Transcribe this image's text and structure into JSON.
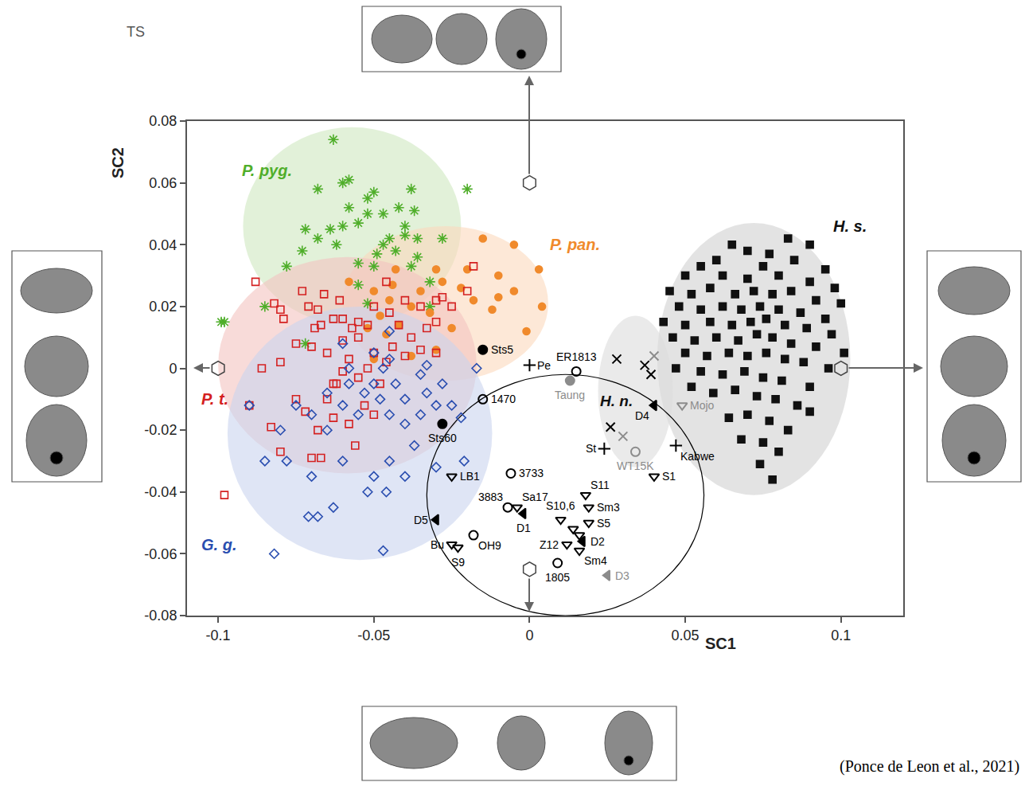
{
  "chart_data": {
    "type": "scatter",
    "x_label": "SC1",
    "y_label": "SC2",
    "xlim": [
      -0.11,
      0.12
    ],
    "ylim": [
      -0.08,
      0.08
    ],
    "xticks": [
      -0.1,
      -0.05,
      0,
      0.05,
      0.1
    ],
    "yticks": [
      -0.08,
      -0.06,
      -0.04,
      -0.02,
      0,
      0.02,
      0.04,
      0.06,
      0.08
    ],
    "grid": false,
    "source": "(Ponce de Leon et al., 2021)",
    "inset_label": "TS",
    "series": [
      {
        "name": "P. pyg.",
        "color": "#4fae2a",
        "marker": "asterisk",
        "region": {
          "x0": -0.092,
          "x1": -0.022,
          "y0": 0.014,
          "y1": 0.078,
          "color": "#cfe8bf"
        },
        "x": [
          -0.063,
          -0.058,
          -0.06,
          -0.068,
          -0.05,
          -0.038,
          -0.02,
          -0.058,
          -0.052,
          -0.042,
          -0.037,
          -0.047,
          -0.052,
          -0.06,
          -0.064,
          -0.072,
          -0.068,
          -0.062,
          -0.055,
          -0.04,
          -0.045,
          -0.04,
          -0.036,
          -0.073,
          -0.047,
          -0.049,
          -0.043,
          -0.036,
          -0.028,
          -0.038,
          -0.078,
          -0.055,
          -0.05,
          -0.032,
          -0.098,
          -0.085,
          -0.099,
          -0.072,
          -0.055,
          -0.052,
          -0.032
        ],
        "y": [
          0.074,
          0.061,
          0.06,
          0.058,
          0.057,
          0.058,
          0.058,
          0.052,
          0.055,
          0.052,
          0.051,
          0.05,
          0.05,
          0.046,
          0.045,
          0.045,
          0.042,
          0.04,
          0.047,
          0.046,
          0.042,
          0.043,
          0.042,
          0.038,
          0.04,
          0.037,
          0.038,
          0.036,
          0.042,
          0.033,
          0.033,
          0.034,
          0.033,
          0.028,
          0.015,
          0.02,
          0.015,
          0.008,
          0.027,
          0.021,
          0.02
        ]
      },
      {
        "name": "P. pan.",
        "color": "#f08a2c",
        "marker": "circle",
        "region": {
          "x0": -0.06,
          "x1": 0.006,
          "y0": -0.004,
          "y1": 0.046,
          "color": "#fbd9bd"
        },
        "x": [
          -0.015,
          -0.005,
          0.003,
          -0.01,
          -0.02,
          -0.03,
          -0.028,
          -0.022,
          -0.035,
          -0.043,
          -0.05,
          -0.045,
          -0.038,
          -0.032,
          -0.042,
          -0.046,
          -0.052,
          -0.048,
          -0.05,
          -0.038,
          -0.03,
          -0.018,
          -0.012,
          0.004,
          -0.01,
          -0.001,
          -0.005,
          -0.025,
          -0.058,
          -0.044
        ],
        "y": [
          0.042,
          0.04,
          0.032,
          0.03,
          0.032,
          0.032,
          0.028,
          0.026,
          0.025,
          0.032,
          0.025,
          0.022,
          0.02,
          0.018,
          0.014,
          0.011,
          0.013,
          0.017,
          0.003,
          0.004,
          0.006,
          0.022,
          0.019,
          0.02,
          0.023,
          0.012,
          0.025,
          0.013,
          0.028,
          0.027
        ]
      },
      {
        "name": "P. t.",
        "color": "#d42020",
        "marker": "square-open",
        "region": {
          "x0": -0.1,
          "x1": -0.017,
          "y0": -0.034,
          "y1": 0.036,
          "color": "#f4c3c0"
        },
        "x": [
          -0.088,
          -0.082,
          -0.08,
          -0.079,
          -0.071,
          -0.068,
          -0.069,
          -0.067,
          -0.063,
          -0.06,
          -0.057,
          -0.055,
          -0.052,
          -0.05,
          -0.045,
          -0.04,
          -0.035,
          -0.03,
          -0.025,
          -0.028,
          -0.02,
          -0.018,
          -0.046,
          -0.055,
          -0.06,
          -0.065,
          -0.07,
          -0.075,
          -0.08,
          -0.086,
          -0.09,
          -0.083,
          -0.08,
          -0.075,
          -0.072,
          -0.068,
          -0.065,
          -0.062,
          -0.06,
          -0.058,
          -0.055,
          -0.052,
          -0.05,
          -0.048,
          -0.046,
          -0.044,
          -0.04,
          -0.038,
          -0.035,
          -0.033,
          -0.03,
          -0.058,
          -0.056,
          -0.063,
          -0.07,
          -0.067,
          -0.063,
          -0.053,
          -0.05,
          -0.098,
          -0.061,
          -0.073,
          -0.066,
          -0.042,
          -0.03
        ],
        "y": [
          0.028,
          0.021,
          0.019,
          0.016,
          0.02,
          0.019,
          0.013,
          0.014,
          0.016,
          0.016,
          0.013,
          0.015,
          0.014,
          0.02,
          0.018,
          0.022,
          0.02,
          0.022,
          0.02,
          0.023,
          0.025,
          0.033,
          0.028,
          0.01,
          0.009,
          0.005,
          0.007,
          0.008,
          0.002,
          0.0,
          -0.012,
          -0.019,
          -0.027,
          -0.01,
          -0.014,
          -0.02,
          -0.01,
          -0.005,
          -0.001,
          0.003,
          -0.003,
          0.0,
          0.005,
          -0.005,
          0.002,
          0.007,
          0.004,
          0.01,
          0.006,
          0.013,
          0.015,
          -0.018,
          -0.025,
          -0.016,
          -0.029,
          -0.029,
          -0.005,
          -0.012,
          -0.015,
          -0.041,
          0.022,
          0.025,
          0.024,
          0.014,
          0.005
        ]
      },
      {
        "name": "G. g.",
        "color": "#2a4eb0",
        "marker": "diamond-open",
        "region": {
          "x0": -0.097,
          "x1": -0.012,
          "y0": -0.062,
          "y1": 0.02,
          "color": "#c9d3ee"
        },
        "x": [
          -0.045,
          -0.05,
          -0.047,
          -0.045,
          -0.05,
          -0.043,
          -0.04,
          -0.035,
          -0.033,
          -0.028,
          -0.03,
          -0.025,
          -0.035,
          -0.04,
          -0.045,
          -0.048,
          -0.053,
          -0.058,
          -0.065,
          -0.06,
          -0.055,
          -0.065,
          -0.07,
          -0.075,
          -0.08,
          -0.09,
          -0.085,
          -0.078,
          -0.07,
          -0.06,
          -0.05,
          -0.045,
          -0.04,
          -0.037,
          -0.03,
          -0.021,
          -0.022,
          -0.017,
          -0.052,
          -0.046,
          -0.063,
          -0.068,
          -0.071,
          -0.082,
          -0.047,
          -0.058,
          -0.06,
          -0.033
        ],
        "y": [
          0.012,
          0.005,
          0.0,
          0.003,
          -0.005,
          -0.005,
          -0.01,
          -0.002,
          -0.008,
          -0.005,
          -0.012,
          -0.012,
          -0.015,
          -0.018,
          -0.015,
          -0.01,
          -0.008,
          -0.005,
          -0.008,
          -0.012,
          -0.015,
          -0.02,
          -0.015,
          -0.012,
          -0.02,
          -0.012,
          -0.03,
          -0.03,
          -0.035,
          -0.03,
          -0.035,
          -0.03,
          -0.035,
          -0.025,
          -0.032,
          -0.03,
          -0.016,
          0.0,
          -0.04,
          -0.04,
          -0.045,
          -0.048,
          -0.048,
          -0.06,
          -0.059,
          0.0,
          0.008,
          0.001
        ]
      },
      {
        "name": "H. s.",
        "color": "#111111",
        "marker": "square",
        "region": {
          "x0": 0.041,
          "x1": 0.103,
          "y0": -0.041,
          "y1": 0.047,
          "color": "#d0d0d0"
        },
        "x": [
          0.065,
          0.07,
          0.077,
          0.083,
          0.09,
          0.06,
          0.055,
          0.075,
          0.085,
          0.095,
          0.05,
          0.062,
          0.07,
          0.08,
          0.09,
          0.098,
          0.045,
          0.052,
          0.058,
          0.066,
          0.072,
          0.078,
          0.084,
          0.092,
          0.1,
          0.048,
          0.055,
          0.062,
          0.068,
          0.074,
          0.08,
          0.087,
          0.095,
          0.043,
          0.05,
          0.058,
          0.065,
          0.071,
          0.076,
          0.082,
          0.089,
          0.097,
          0.046,
          0.053,
          0.06,
          0.067,
          0.073,
          0.078,
          0.084,
          0.092,
          0.101,
          0.05,
          0.057,
          0.064,
          0.07,
          0.076,
          0.082,
          0.088,
          0.096,
          0.047,
          0.055,
          0.062,
          0.069,
          0.075,
          0.081,
          0.09,
          0.052,
          0.059,
          0.066,
          0.073,
          0.079,
          0.086,
          0.064,
          0.07,
          0.077,
          0.083,
          0.068,
          0.075,
          0.08,
          0.074,
          0.078,
          0.09
        ],
        "y": [
          0.04,
          0.038,
          0.037,
          0.042,
          0.04,
          0.035,
          0.033,
          0.033,
          0.035,
          0.032,
          0.03,
          0.03,
          0.029,
          0.03,
          0.028,
          0.026,
          0.025,
          0.024,
          0.026,
          0.024,
          0.025,
          0.024,
          0.025,
          0.022,
          0.021,
          0.02,
          0.019,
          0.02,
          0.019,
          0.02,
          0.019,
          0.018,
          0.016,
          0.015,
          0.014,
          0.015,
          0.014,
          0.015,
          0.016,
          0.014,
          0.013,
          0.011,
          0.01,
          0.009,
          0.01,
          0.009,
          0.011,
          0.01,
          0.008,
          0.007,
          0.005,
          0.005,
          0.004,
          0.005,
          0.004,
          0.005,
          0.003,
          0.002,
          0.0,
          0.0,
          -0.001,
          -0.002,
          -0.001,
          -0.003,
          -0.004,
          -0.006,
          -0.006,
          -0.008,
          -0.007,
          -0.009,
          -0.01,
          -0.012,
          -0.016,
          -0.015,
          -0.017,
          -0.02,
          -0.023,
          -0.024,
          -0.027,
          -0.031,
          -0.036,
          -0.014
        ]
      }
    ],
    "other_groups": [
      {
        "name": "H. n.",
        "color": "#111111",
        "region": {
          "x0": 0.022,
          "x1": 0.046,
          "y0": -0.032,
          "y1": 0.017,
          "color": "#dcdcdc"
        }
      }
    ],
    "fossil_region": {
      "x0": -0.033,
      "x1": 0.056,
      "y0": -0.08,
      "y1": -0.002,
      "color": "#000000"
    },
    "axis_extremes": {
      "x": [
        -0.1,
        0,
        0.1,
        0
      ],
      "y": [
        0,
        0.06,
        0,
        -0.065
      ]
    },
    "fossils": [
      {
        "label": "Sts5",
        "x": -0.015,
        "y": 0.006,
        "marker": "circle",
        "color": "#000000"
      },
      {
        "label": "Pe",
        "x": 0.0,
        "y": 0.001,
        "marker": "cross",
        "color": "#000000"
      },
      {
        "label": "ER1813",
        "x": 0.015,
        "y": -0.001,
        "marker": "circle-open",
        "color": "#000000"
      },
      {
        "label": "Taung",
        "x": 0.013,
        "y": -0.004,
        "marker": "circle",
        "color": "#8c8c8c"
      },
      {
        "label": "1470",
        "x": -0.015,
        "y": -0.01,
        "marker": "circle-open",
        "color": "#000000"
      },
      {
        "label": "Sts60",
        "x": -0.028,
        "y": -0.018,
        "marker": "circle",
        "color": "#000000"
      },
      {
        "label": null,
        "x": 0.028,
        "y": 0.003,
        "marker": "x",
        "color": "#000000"
      },
      {
        "label": null,
        "x": 0.037,
        "y": 0.001,
        "marker": "x",
        "color": "#000000"
      },
      {
        "label": null,
        "x": 0.039,
        "y": -0.002,
        "marker": "x",
        "color": "#000000"
      },
      {
        "label": null,
        "x": 0.026,
        "y": -0.019,
        "marker": "x",
        "color": "#000000"
      },
      {
        "label": null,
        "x": 0.04,
        "y": 0.004,
        "marker": "x",
        "color": "#8c8c8c"
      },
      {
        "label": null,
        "x": 0.03,
        "y": -0.022,
        "marker": "x",
        "color": "#8c8c8c"
      },
      {
        "label": "St",
        "x": 0.024,
        "y": -0.026,
        "marker": "cross",
        "color": "#000000"
      },
      {
        "label": "WT15K",
        "x": 0.034,
        "y": -0.027,
        "marker": "circle-open",
        "color": "#8c8c8c"
      },
      {
        "label": "Kabwe",
        "x": 0.047,
        "y": -0.025,
        "marker": "cross",
        "color": "#000000"
      },
      {
        "label": "D4",
        "x": 0.04,
        "y": -0.012,
        "marker": "triangle-left",
        "color": "#000000"
      },
      {
        "label": "Mojo",
        "x": 0.049,
        "y": -0.012,
        "marker": "triangle-down-open",
        "color": "#8c8c8c"
      },
      {
        "label": "S1",
        "x": 0.04,
        "y": -0.035,
        "marker": "triangle-down-open",
        "color": "#000000"
      },
      {
        "label": "LB1",
        "x": -0.025,
        "y": -0.035,
        "marker": "triangle-down-open",
        "color": "#000000"
      },
      {
        "label": "3733",
        "x": -0.006,
        "y": -0.034,
        "marker": "circle-open",
        "color": "#000000"
      },
      {
        "label": "3883",
        "x": -0.007,
        "y": -0.045,
        "marker": "circle-open",
        "color": "#000000"
      },
      {
        "label": "Sa17",
        "x": -0.004,
        "y": -0.045,
        "marker": "triangle-down-open",
        "color": "#000000"
      },
      {
        "label": "D1",
        "x": -0.002,
        "y": -0.047,
        "marker": "triangle-left",
        "color": "#000000"
      },
      {
        "label": "D5",
        "x": -0.03,
        "y": -0.049,
        "marker": "triangle-left",
        "color": "#000000"
      },
      {
        "label": "OH9",
        "x": -0.018,
        "y": -0.054,
        "marker": "circle-open",
        "color": "#000000"
      },
      {
        "label": "Bu",
        "x": -0.025,
        "y": -0.057,
        "marker": "triangle-down-open",
        "color": "#000000"
      },
      {
        "label": "S9",
        "x": -0.023,
        "y": -0.058,
        "marker": "triangle-down-open",
        "color": "#000000"
      },
      {
        "label": null,
        "x": 0.014,
        "y": -0.052,
        "marker": "triangle-down-open",
        "color": "#000000"
      },
      {
        "label": "S10,6",
        "x": 0.01,
        "y": -0.049,
        "marker": "triangle-down-open",
        "color": "#000000"
      },
      {
        "label": "S11",
        "x": 0.018,
        "y": -0.041,
        "marker": "triangle-down-open",
        "color": "#000000"
      },
      {
        "label": "Sm3",
        "x": 0.019,
        "y": -0.045,
        "marker": "triangle-down-open",
        "color": "#000000"
      },
      {
        "label": "S5",
        "x": 0.019,
        "y": -0.05,
        "marker": "triangle-down-open",
        "color": "#000000"
      },
      {
        "label": null,
        "x": 0.016,
        "y": -0.054,
        "marker": "triangle-down-open",
        "color": "#000000"
      },
      {
        "label": "Z12",
        "x": 0.012,
        "y": -0.057,
        "marker": "triangle-down-open",
        "color": "#000000"
      },
      {
        "label": "D2",
        "x": 0.017,
        "y": -0.056,
        "marker": "triangle-left",
        "color": "#000000"
      },
      {
        "label": "Sm4",
        "x": 0.016,
        "y": -0.059,
        "marker": "triangle-down-open",
        "color": "#000000"
      },
      {
        "label": "D3",
        "x": 0.025,
        "y": -0.067,
        "marker": "triangle-left",
        "color": "#8c8c8c"
      },
      {
        "label": "1805",
        "x": 0.009,
        "y": -0.063,
        "marker": "circle-open",
        "color": "#000000"
      }
    ]
  }
}
